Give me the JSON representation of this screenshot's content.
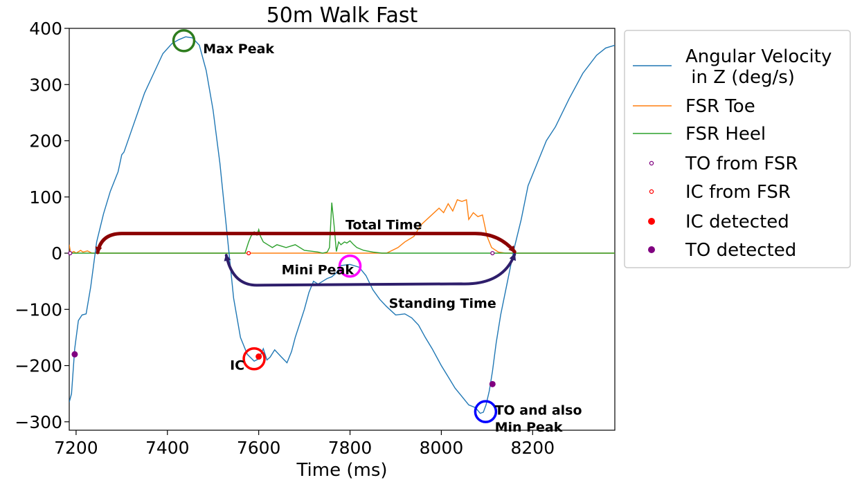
{
  "chart_data": {
    "type": "line",
    "title": "50m Walk Fast",
    "xlabel": "Time (ms)",
    "ylabel": "",
    "xlim": [
      7185,
      8380
    ],
    "ylim": [
      -315,
      400
    ],
    "xticks": [
      7200,
      7400,
      7600,
      7800,
      8000,
      8200
    ],
    "yticks": [
      400,
      300,
      200,
      100,
      0,
      -100,
      -200,
      -300
    ],
    "xtick_labels": [
      "7200",
      "7400",
      "7600",
      "7800",
      "8000",
      "8200"
    ],
    "ytick_labels": [
      "400",
      "300",
      "200",
      "100",
      "0",
      "−100",
      "−200",
      "−300"
    ],
    "legend_position": "outside-right",
    "series": [
      {
        "name": "Angular Velocity\n in Z (deg/s)",
        "kind": "line",
        "color": "#1f77b4",
        "x": [
          7185,
          7190,
          7197,
          7205,
          7213,
          7222,
          7232,
          7245,
          7260,
          7275,
          7292,
          7300,
          7305,
          7320,
          7335,
          7350,
          7370,
          7390,
          7410,
          7425,
          7440,
          7455,
          7470,
          7485,
          7500,
          7515,
          7530,
          7545,
          7560,
          7575,
          7590,
          7600,
          7610,
          7618,
          7625,
          7635,
          7650,
          7662,
          7672,
          7680,
          7690,
          7700,
          7710,
          7720,
          7730,
          7740,
          7750,
          7760,
          7770,
          7780,
          7800,
          7820,
          7835,
          7850,
          7865,
          7880,
          7900,
          7920,
          7935,
          7950,
          7965,
          7980,
          8000,
          8015,
          8030,
          8045,
          8060,
          8075,
          8085,
          8092,
          8098,
          8105,
          8112,
          8120,
          8130,
          8145,
          8160,
          8175,
          8190,
          8210,
          8230,
          8250,
          8280,
          8310,
          8340,
          8360,
          8380
        ],
        "y": [
          -265,
          -250,
          -170,
          -120,
          -110,
          -108,
          -60,
          20,
          70,
          110,
          145,
          175,
          180,
          215,
          250,
          285,
          320,
          355,
          373,
          380,
          385,
          383,
          370,
          325,
          255,
          160,
          40,
          -80,
          -150,
          -180,
          -192,
          -188,
          -170,
          -190,
          -185,
          -172,
          -185,
          -195,
          -175,
          -150,
          -125,
          -100,
          -70,
          -50,
          -55,
          -50,
          -45,
          -42,
          -35,
          -22,
          -20,
          -25,
          -40,
          -65,
          -82,
          -95,
          -110,
          -108,
          -115,
          -128,
          -150,
          -170,
          -200,
          -220,
          -240,
          -255,
          -270,
          -275,
          -285,
          -283,
          -270,
          -245,
          -210,
          -160,
          -110,
          -50,
          10,
          60,
          120,
          160,
          200,
          225,
          275,
          320,
          352,
          365,
          370
        ]
      },
      {
        "name": "FSR Toe",
        "kind": "line",
        "color": "#ff7f0e",
        "x": [
          7185,
          7188,
          7195,
          7200,
          7210,
          7215,
          7225,
          7235,
          7880,
          7905,
          7920,
          7940,
          7955,
          7975,
          7995,
          8005,
          8015,
          8025,
          8035,
          8045,
          8055,
          8060,
          8070,
          8080,
          8090,
          8100,
          8110,
          8125,
          8140,
          8160,
          8380
        ],
        "y": [
          15,
          0,
          3,
          0,
          5,
          2,
          4,
          0,
          0,
          10,
          20,
          30,
          50,
          65,
          80,
          72,
          88,
          75,
          95,
          92,
          95,
          60,
          72,
          65,
          68,
          30,
          10,
          2,
          0,
          0,
          0
        ]
      },
      {
        "name": "FSR Heel",
        "kind": "line",
        "color": "#2ca02c",
        "x": [
          7185,
          7570,
          7578,
          7583,
          7590,
          7596,
          7600,
          7604,
          7610,
          7620,
          7630,
          7640,
          7660,
          7680,
          7700,
          7720,
          7730,
          7740,
          7750,
          7755,
          7760,
          7765,
          7770,
          7775,
          7780,
          7788,
          7793,
          7800,
          7808,
          7815,
          7830,
          7850,
          7870,
          7880,
          8380
        ],
        "y": [
          0,
          0,
          20,
          30,
          38,
          32,
          42,
          30,
          20,
          15,
          10,
          15,
          10,
          15,
          5,
          3,
          2,
          0,
          2,
          10,
          90,
          50,
          3,
          20,
          15,
          20,
          18,
          22,
          15,
          10,
          5,
          2,
          0,
          0,
          0
        ]
      },
      {
        "name": "TO from FSR",
        "kind": "marker-hollow",
        "color": "#800080",
        "x": [
          7187,
          8112
        ],
        "y": [
          0,
          0
        ]
      },
      {
        "name": "IC from FSR",
        "kind": "marker-hollow",
        "color": "#ff0000",
        "x": [
          7578
        ],
        "y": [
          0
        ]
      },
      {
        "name": "IC detected",
        "kind": "marker-filled",
        "color": "#ff0000",
        "x": [
          7600
        ],
        "y": [
          -184
        ]
      },
      {
        "name": "TO detected",
        "kind": "marker-filled",
        "color": "#800080",
        "x": [
          7197,
          8112
        ],
        "y": [
          -180,
          -233
        ]
      }
    ],
    "annotations": [
      {
        "text": "Max Peak",
        "x": 7478,
        "y": 363,
        "circle": {
          "x": 7436,
          "y": 378
        },
        "color": "#2e7d1e"
      },
      {
        "text": "Mini Peak",
        "x": 7650,
        "y": -30,
        "circle": {
          "x": 7800,
          "y": -23
        },
        "color": "#ff00ff"
      },
      {
        "text": "IC",
        "x": 7537,
        "y": -200,
        "circle": {
          "x": 7590,
          "y": -188
        },
        "color": "#ff0000"
      },
      {
        "text": "TO and also",
        "x": 8117,
        "y": -280,
        "circle": {
          "x": 8097,
          "y": -282
        },
        "color": "#0000ff"
      },
      {
        "text": "Min Peak",
        "x": 8117,
        "y": -310
      },
      {
        "text": "Total Time",
        "x": 7790,
        "y": 50
      },
      {
        "text": "Standing Time",
        "x": 7885,
        "y": -90
      }
    ],
    "arrows": [
      {
        "name": "total-time-arrow",
        "color": "#8b0000",
        "from": [
          7270,
          35
        ],
        "to": [
          8165,
          0
        ],
        "double_headed": true
      },
      {
        "name": "standing-time-arrow",
        "color": "#2e1e6b",
        "from": [
          7535,
          0
        ],
        "to": [
          8165,
          0
        ],
        "double_headed": true
      }
    ]
  }
}
